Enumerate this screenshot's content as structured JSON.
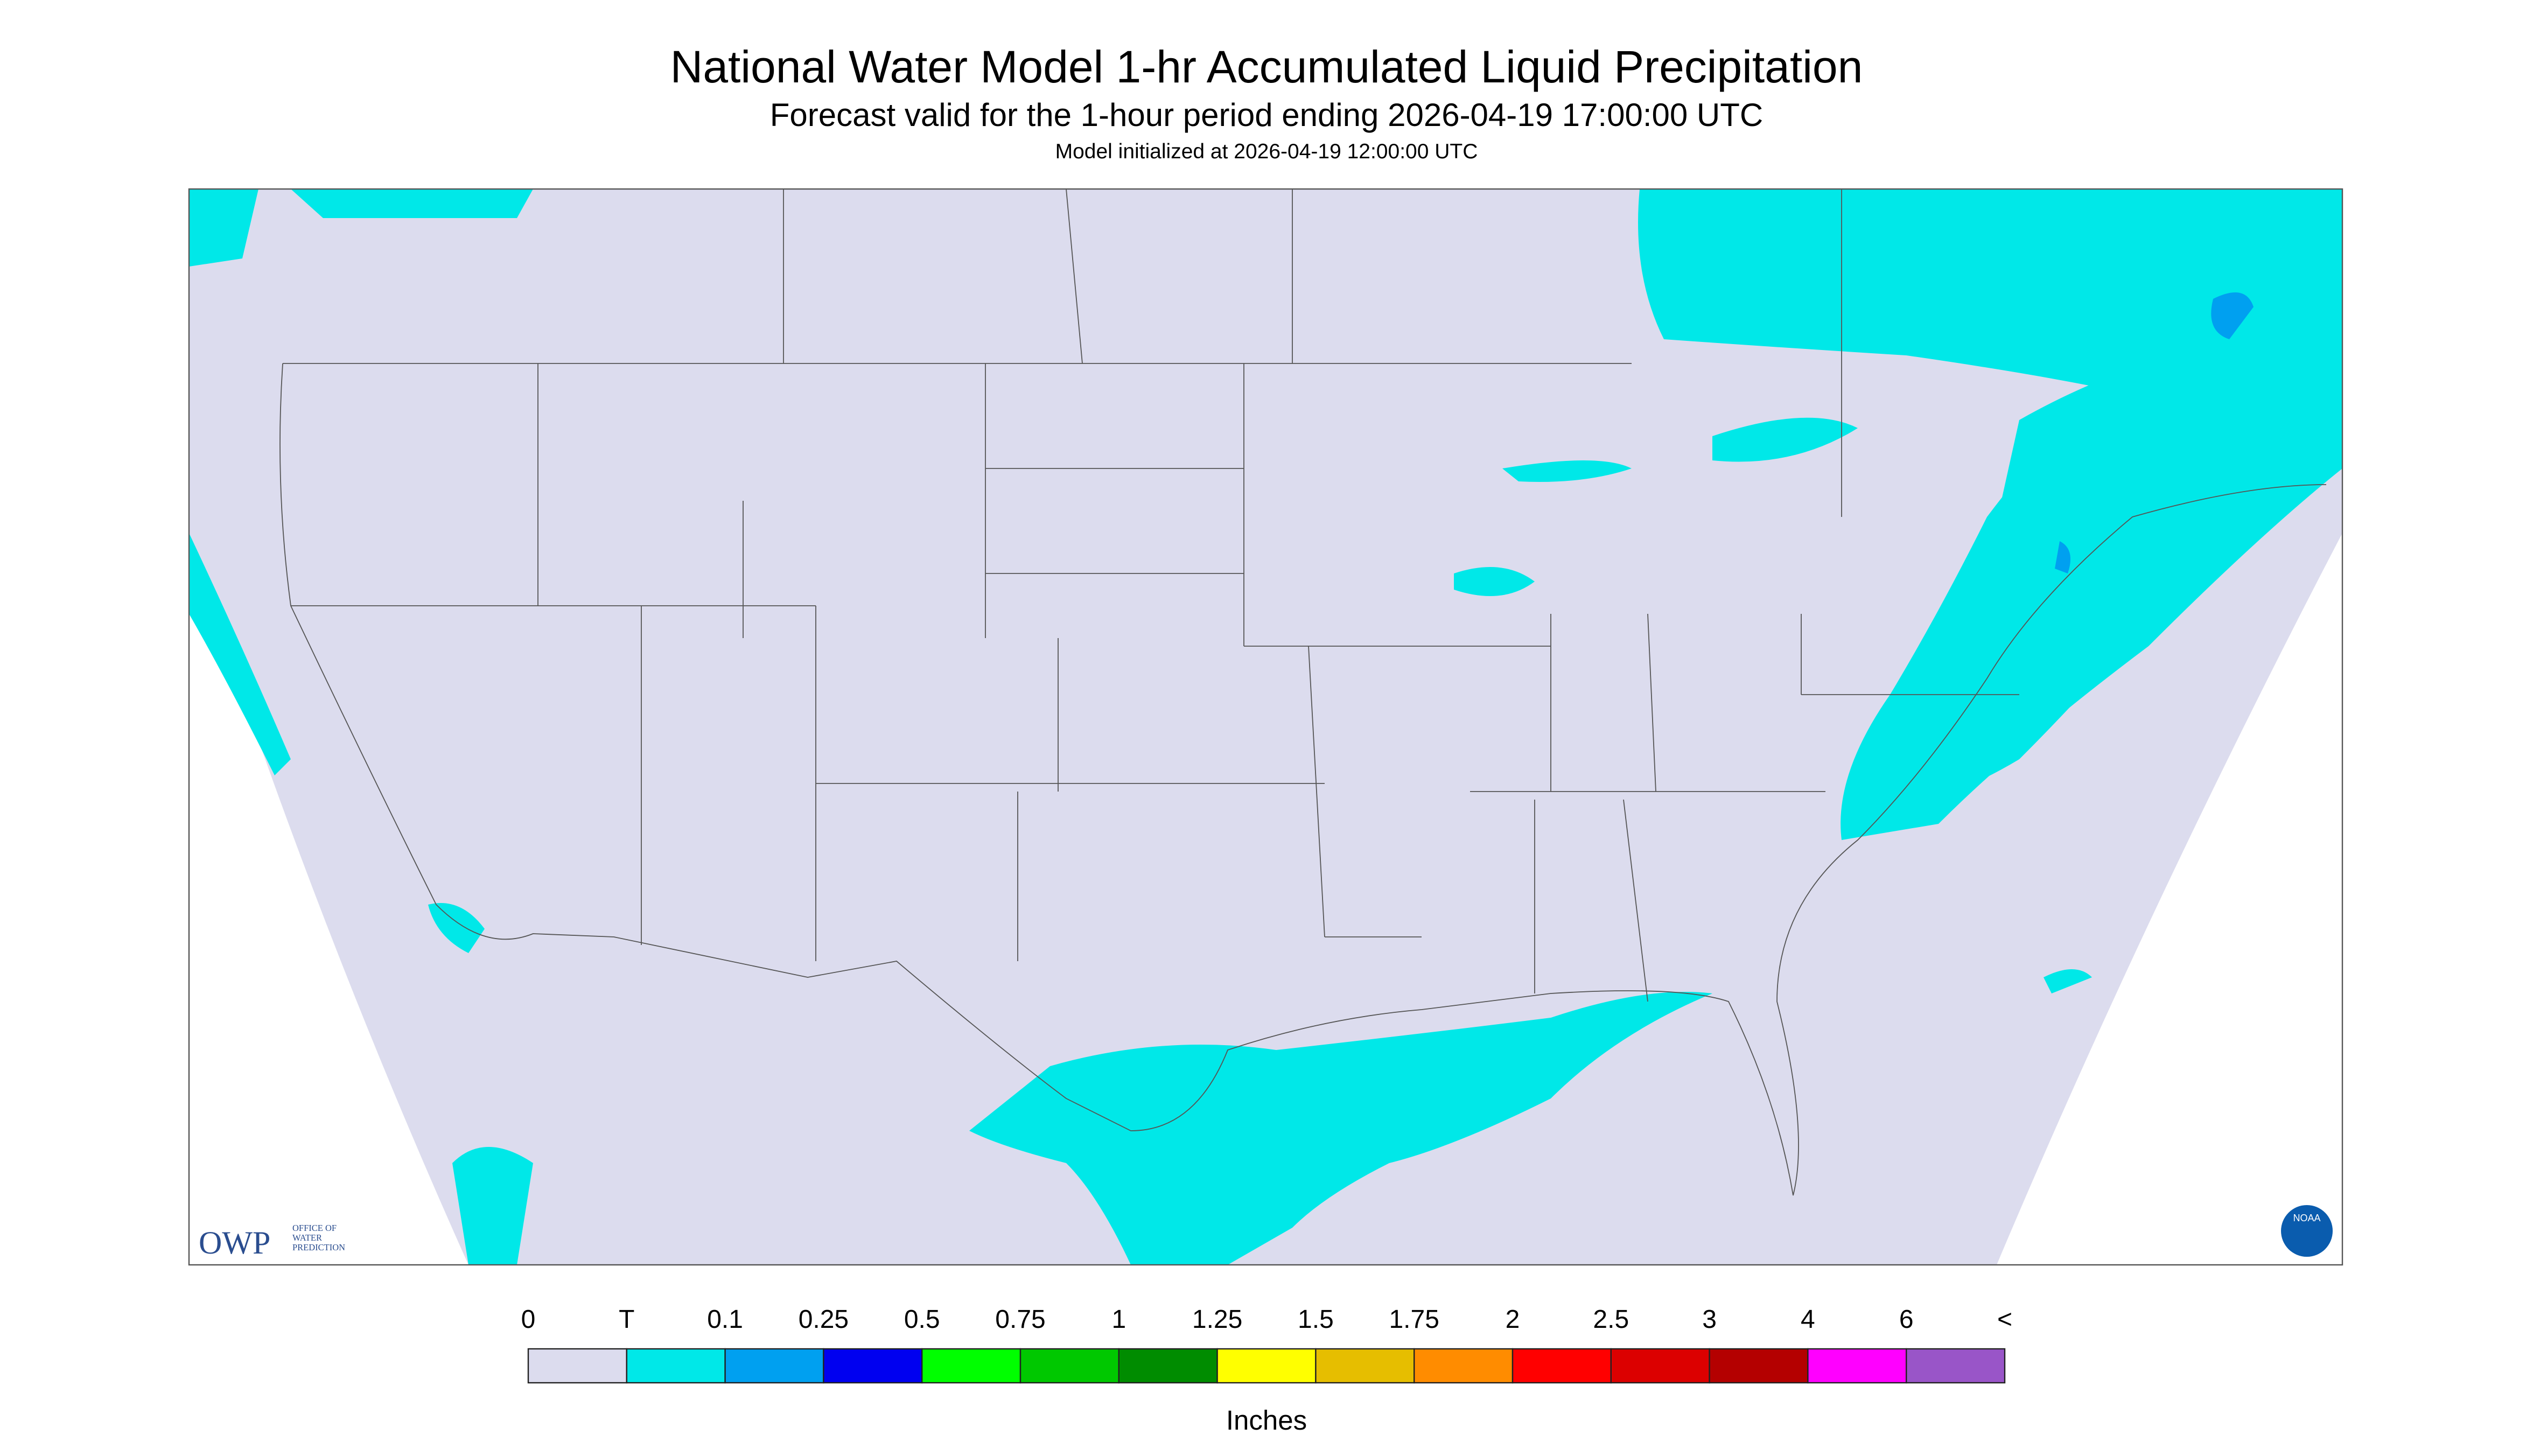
{
  "header": {
    "title": "National Water Model 1-hr Accumulated Liquid Precipitation",
    "subtitle": "Forecast valid for the 1-hour period ending 2026-04-19 17:00:00 UTC",
    "initialized": "Model initialized at 2026-04-19 12:00:00 UTC"
  },
  "legend": {
    "labels": [
      "0",
      "T",
      "0.1",
      "0.25",
      "0.5",
      "0.75",
      "1",
      "1.25",
      "1.5",
      "1.75",
      "2",
      "2.5",
      "3",
      "4",
      "6",
      "<"
    ],
    "colors": [
      "#dcdcee",
      "#00e8e8",
      "#00a0f0",
      "#0000f0",
      "#00ff00",
      "#00c800",
      "#008c00",
      "#ffff00",
      "#e6be00",
      "#ff8c00",
      "#ff0000",
      "#dc0000",
      "#b40000",
      "#ff00ff",
      "#9955c8"
    ],
    "units": "Inches"
  },
  "logos": {
    "owp": "OWP",
    "owp_lines": [
      "OFFICE OF",
      "WATER",
      "PREDICTION"
    ],
    "noaa": "NOAA"
  }
}
